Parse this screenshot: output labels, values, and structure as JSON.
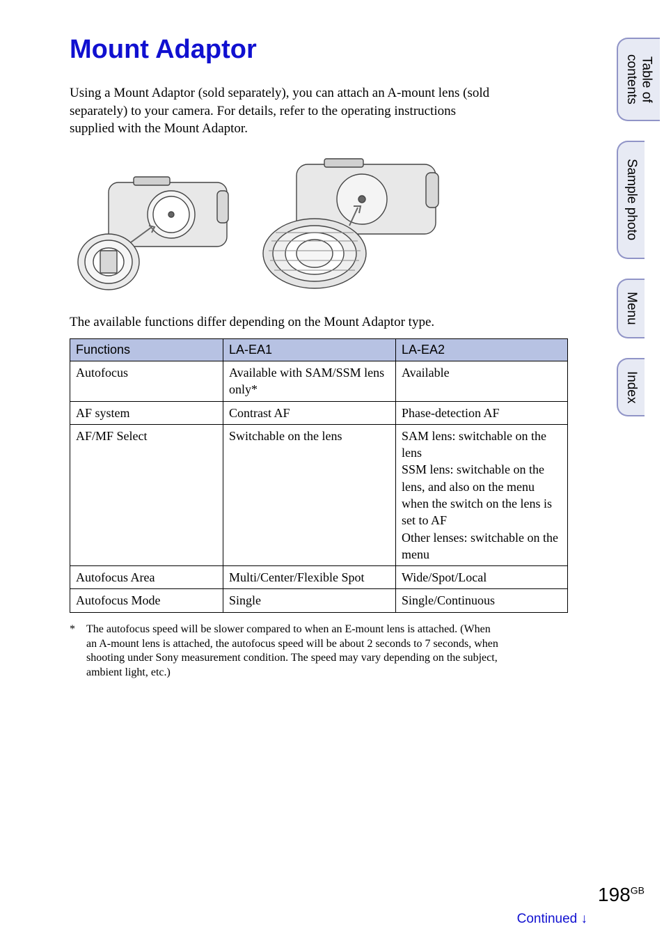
{
  "title": "Mount Adaptor",
  "intro": "Using a Mount Adaptor (sold separately), you can attach an A-mount lens (sold separately) to your camera. For details, refer to the operating instructions supplied with the Mount Adaptor.",
  "caption": "The available functions differ depending on the Mount Adaptor type.",
  "table": {
    "headers": [
      "Functions",
      "LA-EA1",
      "LA-EA2"
    ],
    "rows": [
      [
        "Autofocus",
        "Available with SAM/SSM lens only*",
        "Available"
      ],
      [
        "AF system",
        "Contrast AF",
        "Phase-detection AF"
      ],
      [
        "AF/MF Select",
        "Switchable on the lens",
        "SAM lens: switchable on the lens\nSSM lens: switchable on the lens, and also on the menu when the switch on the lens is set to AF\nOther lenses: switchable on the menu"
      ],
      [
        "Autofocus Area",
        "Multi/Center/Flexible Spot",
        "Wide/Spot/Local"
      ],
      [
        "Autofocus Mode",
        "Single",
        "Single/Continuous"
      ]
    ],
    "header_bg": "#b7c2e3",
    "border_color": "#000000"
  },
  "footnote": {
    "marker": "*",
    "text": "The autofocus speed will be slower compared to when an E-mount lens is attached. (When an A-mount lens is attached, the autofocus speed will be about 2 seconds to 7 seconds, when shooting under Sony measurement condition. The speed may vary depending on the subject, ambient light, etc.)"
  },
  "tabs": [
    {
      "label": "Table of contents"
    },
    {
      "label": "Sample photo"
    },
    {
      "label": "Menu"
    },
    {
      "label": "Index"
    }
  ],
  "page_number": "198",
  "page_suffix": "GB",
  "continued": "Continued ↓",
  "colors": {
    "title": "#1010d0",
    "tab_border": "#9094c7",
    "tab_bg": "#e7eaf4",
    "continued": "#1010d0"
  }
}
